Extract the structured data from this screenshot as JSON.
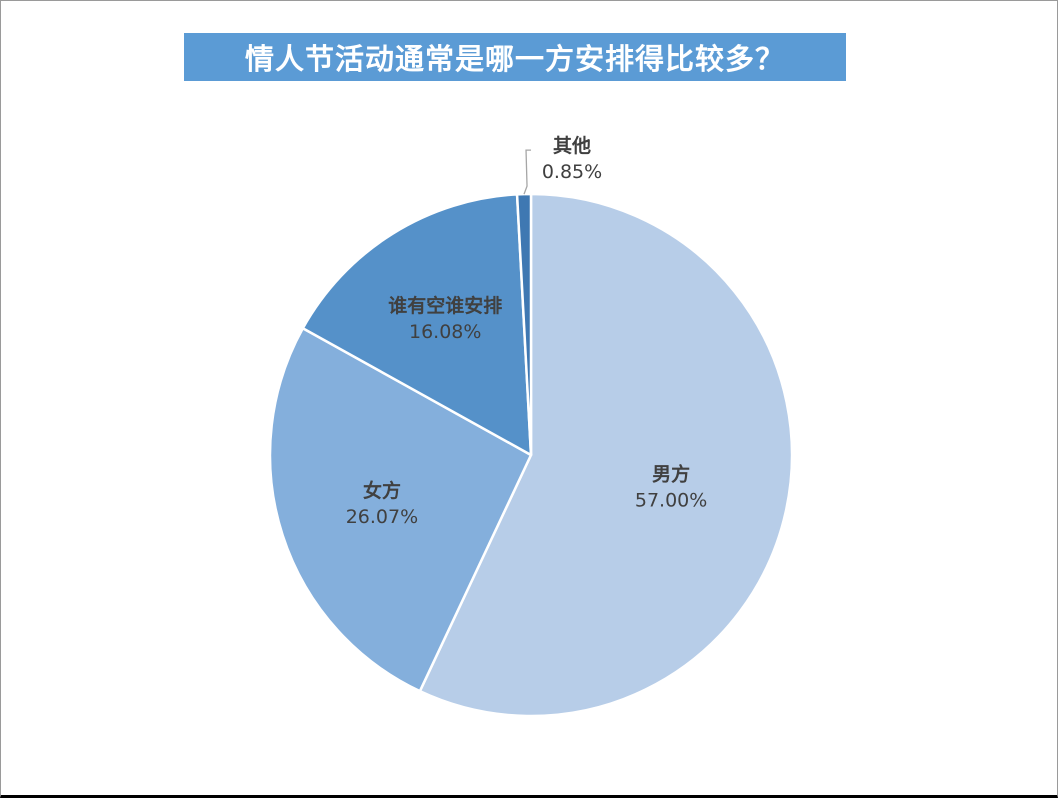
{
  "chart_data": {
    "type": "pie",
    "title": "情人节活动通常是哪一方安排得比较多？",
    "categories": [
      "男方",
      "女方",
      "谁有空谁安排",
      "其他"
    ],
    "values": [
      57.0,
      26.07,
      16.08,
      0.85
    ],
    "value_labels": [
      "57.00%",
      "26.07%",
      "16.08%",
      "0.85%"
    ],
    "colors": [
      "#b7cde8",
      "#84afdc",
      "#5591c9",
      "#3f78b2"
    ],
    "start_angle": "12 o'clock",
    "direction": "clockwise",
    "legend": "none",
    "data_labels": "category name and percentage on slices; small slice labelled outside with leader line"
  }
}
